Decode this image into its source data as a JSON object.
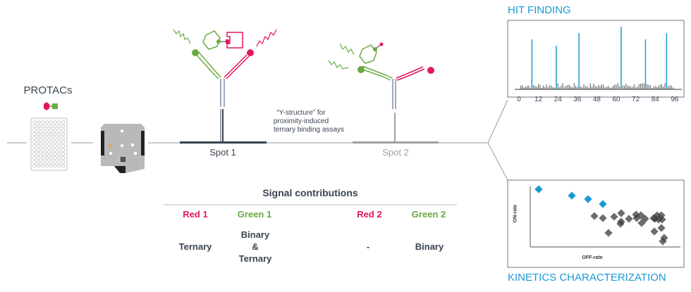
{
  "left": {
    "protacs_label": "PROTACs"
  },
  "spots": {
    "spot1_label": "Spot 1",
    "spot2_label": "Spot 2"
  },
  "y_structure_note": [
    "“Y-structure” for",
    "proximity-induced",
    "ternary binding assays"
  ],
  "hit_finding": {
    "title": "HIT FINDING",
    "x_ticks": [
      "0",
      "12",
      "24",
      "36",
      "48",
      "60",
      "72",
      "84",
      "96"
    ],
    "hits": [
      8,
      23,
      37,
      63,
      78,
      91
    ]
  },
  "kinetics": {
    "title": "KINETICS CHARACTERIZATION",
    "xlabel": "OFF-rate",
    "ylabel": "ON-rate"
  },
  "signal_table": {
    "title": "Signal contributions",
    "headers": [
      "Red 1",
      "Green 1",
      "Red 2",
      "Green 2"
    ],
    "values": [
      "Ternary",
      "Binary\n&\nTernary",
      "-",
      "Binary"
    ]
  },
  "colors": {
    "red": "#e0195a",
    "green": "#6aab3f",
    "blue": "#1a9ad6",
    "text": "#3a4452",
    "spot2_grey": "#a0a0a0"
  }
}
